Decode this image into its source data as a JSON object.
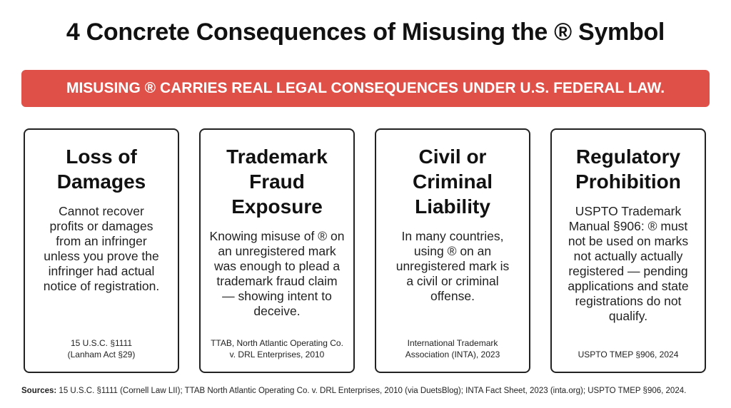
{
  "header": {
    "title": "4 Concrete Consequences of Misusing the ® Symbol"
  },
  "banner": {
    "text": "MISUSING ® CARRIES REAL LEGAL CONSEQUENCES UNDER U.S. FEDERAL LAW."
  },
  "cards": [
    {
      "title": "Loss of Damages",
      "body": "Cannot recover profits or damages from an infringer unless you prove the infringer had actual notice of registration.",
      "citation": "15 U.S.C. §1111 (Lanham Act §29)"
    },
    {
      "title": "Trademark Fraud Exposure",
      "body": "Knowing misuse of ® on an unregistered mark was enough to plead a trademark fraud claim — showing intent to deceive.",
      "citation": "TTAB, North Atlantic Operating Co. v. DRL Enterprises, 2010"
    },
    {
      "title": "Civil or Criminal Liability",
      "body": "In many countries, using ® on an unregistered mark is a civil or criminal offense.",
      "citation": "International Trademark Association (INTA), 2023"
    },
    {
      "title": "Regulatory Prohibition",
      "body": "USPTO Trademark Manual §906: ® must not be used on marks not actually actually registered — pending applications and state registrations do not qualify.",
      "citation": "USPTO TMEP §906, 2024"
    }
  ],
  "sources": {
    "label": "Sources:",
    "text": "15 U.S.C. §1111 (Cornell Law LII); TTAB North Atlantic Operating Co. v. DRL Enterprises, 2010 (via DuetsBlog); INTA Fact Sheet, 2023 (inta.org); USPTO TMEP §906, 2024."
  }
}
